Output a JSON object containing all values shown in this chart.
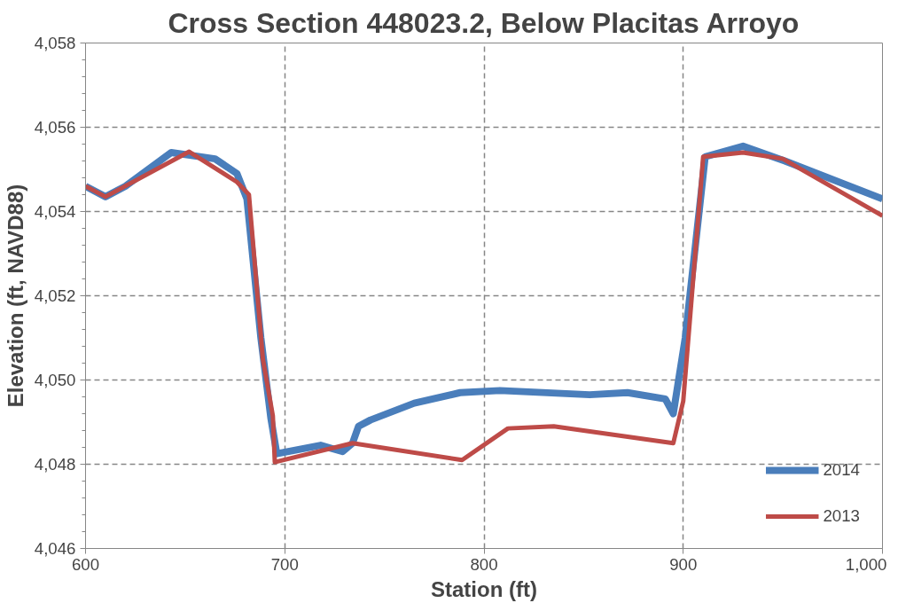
{
  "chart_data": {
    "type": "line",
    "title": "Cross Section 448023.2, Below Placitas Arroyo",
    "xlabel": "Station (ft)",
    "ylabel": "Elevation (ft, NAVD88)",
    "xlim": [
      600,
      1000
    ],
    "xticks": [
      {
        "value": 600,
        "label": "600"
      },
      {
        "value": 700,
        "label": "700"
      },
      {
        "value": 800,
        "label": "800"
      },
      {
        "value": 900,
        "label": "900"
      },
      {
        "value": 1000,
        "label": "1,000"
      }
    ],
    "ylim": [
      4046,
      4058
    ],
    "yticks": [
      {
        "value": 4046,
        "label": "4,046"
      },
      {
        "value": 4048,
        "label": "4,048"
      },
      {
        "value": 4050,
        "label": "4,050"
      },
      {
        "value": 4052,
        "label": "4,052"
      },
      {
        "value": 4054,
        "label": "4,054"
      },
      {
        "value": 4056,
        "label": "4,056"
      },
      {
        "value": 4058,
        "label": "4,058"
      }
    ],
    "grid": true,
    "legend": "bottom right",
    "marker": "none",
    "line_style": "solid",
    "series": [
      {
        "name": "2014",
        "color": "#4a7ebb",
        "x": [
          600,
          610,
          620,
          643,
          665,
          676,
          681,
          688,
          693,
          696,
          718,
          729,
          734,
          737,
          743,
          765,
          788,
          808,
          853,
          872,
          891,
          895,
          901,
          911,
          930,
          951,
          1000
        ],
        "values": [
          4054.6,
          4054.35,
          4054.6,
          4055.4,
          4055.25,
          4054.9,
          4054.3,
          4051,
          4049.1,
          4048.25,
          4048.45,
          4048.3,
          4048.5,
          4048.9,
          4049.05,
          4049.45,
          4049.7,
          4049.75,
          4049.65,
          4049.7,
          4049.55,
          4049.2,
          4051,
          4055.3,
          4055.55,
          4055.2,
          4054.3
        ]
      },
      {
        "name": "2013",
        "color": "#be4b48",
        "x": [
          600,
          610,
          652,
          676,
          682,
          689,
          694,
          695,
          734,
          789,
          812,
          835,
          895,
          900,
          910,
          930,
          950,
          1000
        ],
        "values": [
          4054.6,
          4054.35,
          4055.42,
          4054.7,
          4054.4,
          4050.5,
          4049.15,
          4048.05,
          4048.5,
          4048.1,
          4048.85,
          4048.9,
          4048.5,
          4049.5,
          4055.3,
          4055.4,
          4055.25,
          4053.9
        ]
      }
    ]
  }
}
